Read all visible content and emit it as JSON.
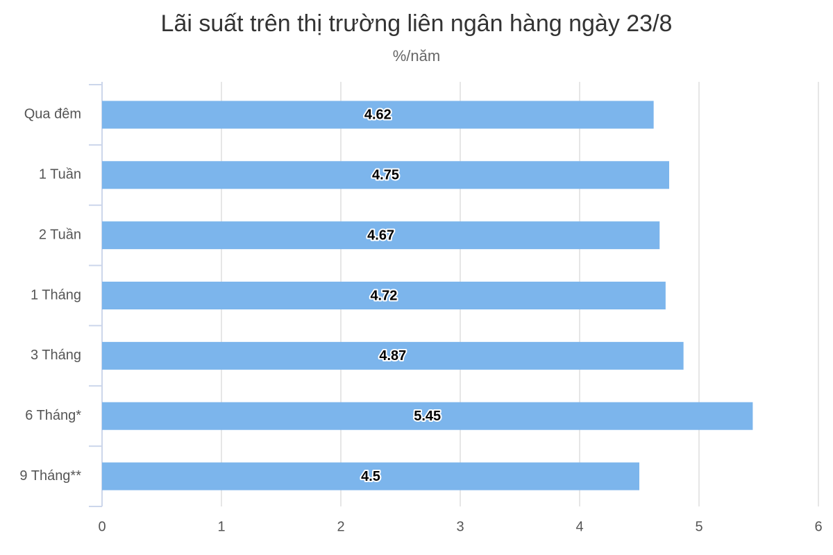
{
  "chart_data": {
    "type": "bar",
    "orientation": "horizontal",
    "title": "Lãi suất trên thị trường liên ngân hàng ngày 23/8",
    "subtitle": "%/năm",
    "categories": [
      "Qua đêm",
      "1 Tuần",
      "2 Tuần",
      "1 Tháng",
      "3 Tháng",
      "6 Tháng*",
      "9 Tháng**"
    ],
    "values": [
      4.62,
      4.75,
      4.67,
      4.72,
      4.87,
      5.45,
      4.5
    ],
    "color": "#7cb5ec",
    "xlim": [
      0,
      6
    ],
    "xticks": [
      0,
      1,
      2,
      3,
      4,
      5,
      6
    ],
    "grid": true
  }
}
